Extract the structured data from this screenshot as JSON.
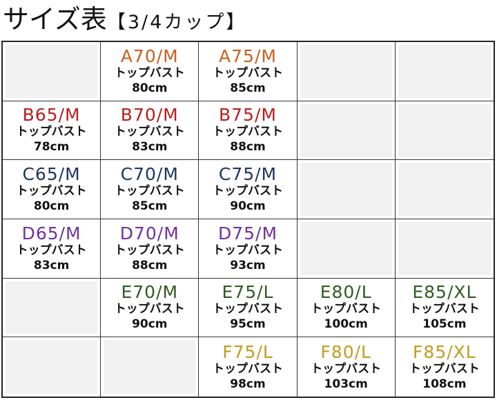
{
  "title": "サイズ表",
  "subtitle": "【3/4カップ】",
  "colors": {
    "A": "#c5601c",
    "B": "#b81c1c",
    "C": "#1f3461",
    "D": "#7030a0",
    "E": "#2f5a22",
    "F": "#c49a1e",
    "empty": "#f1f1f1"
  },
  "rows": [
    [
      null,
      {
        "size": "A70/M",
        "label": "トップバスト",
        "value": "80cm",
        "cup": "A"
      },
      {
        "size": "A75/M",
        "label": "トップバスト",
        "value": "85cm",
        "cup": "A"
      },
      null,
      null
    ],
    [
      {
        "size": "B65/M",
        "label": "トップバスト",
        "value": "78cm",
        "cup": "B"
      },
      {
        "size": "B70/M",
        "label": "トップバスト",
        "value": "83cm",
        "cup": "B"
      },
      {
        "size": "B75/M",
        "label": "トップバスト",
        "value": "88cm",
        "cup": "B"
      },
      null,
      null
    ],
    [
      {
        "size": "C65/M",
        "label": "トップバスト",
        "value": "80cm",
        "cup": "C"
      },
      {
        "size": "C70/M",
        "label": "トップバスト",
        "value": "85cm",
        "cup": "C"
      },
      {
        "size": "C75/M",
        "label": "トップバスト",
        "value": "90cm",
        "cup": "C"
      },
      null,
      null
    ],
    [
      {
        "size": "D65/M",
        "label": "トップバスト",
        "value": "83cm",
        "cup": "D"
      },
      {
        "size": "D70/M",
        "label": "トップバスト",
        "value": "88cm",
        "cup": "D"
      },
      {
        "size": "D75/M",
        "label": "トップバスト",
        "value": "93cm",
        "cup": "D"
      },
      null,
      null
    ],
    [
      null,
      {
        "size": "E70/M",
        "label": "トップバスト",
        "value": "90cm",
        "cup": "E"
      },
      {
        "size": "E75/L",
        "label": "トップバスト",
        "value": "95cm",
        "cup": "E"
      },
      {
        "size": "E80/L",
        "label": "トップバスト",
        "value": "100cm",
        "cup": "E"
      },
      {
        "size": "E85/XL",
        "label": "トップバスト",
        "value": "105cm",
        "cup": "E"
      }
    ],
    [
      null,
      null,
      {
        "size": "F75/L",
        "label": "トップバスト",
        "value": "98cm",
        "cup": "F"
      },
      {
        "size": "F80/L",
        "label": "トップバスト",
        "value": "103cm",
        "cup": "F"
      },
      {
        "size": "F85/XL",
        "label": "トップバスト",
        "value": "108cm",
        "cup": "F"
      }
    ]
  ]
}
